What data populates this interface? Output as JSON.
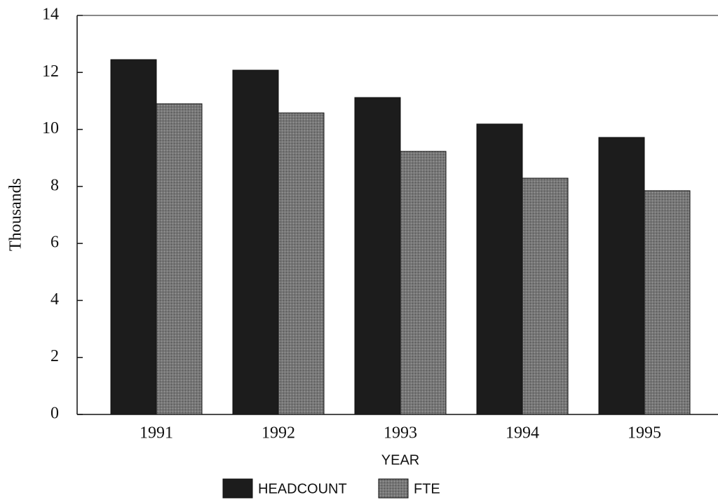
{
  "chart_data": {
    "type": "bar",
    "y_label": "Thousands",
    "x_label": "YEAR",
    "categories": [
      "1991",
      "1992",
      "1993",
      "1994",
      "1995"
    ],
    "series": [
      {
        "name": "HEADCOUNT",
        "color": "#1c1c1c",
        "values": [
          12.45,
          12.08,
          11.12,
          10.19,
          9.72
        ]
      },
      {
        "name": "FTE",
        "color": "#777777",
        "values": [
          10.9,
          10.58,
          9.23,
          8.29,
          7.85
        ]
      }
    ],
    "ylim": [
      0,
      14
    ],
    "yticks": [
      0,
      2,
      4,
      6,
      8,
      10,
      12,
      14
    ],
    "grid": false
  }
}
